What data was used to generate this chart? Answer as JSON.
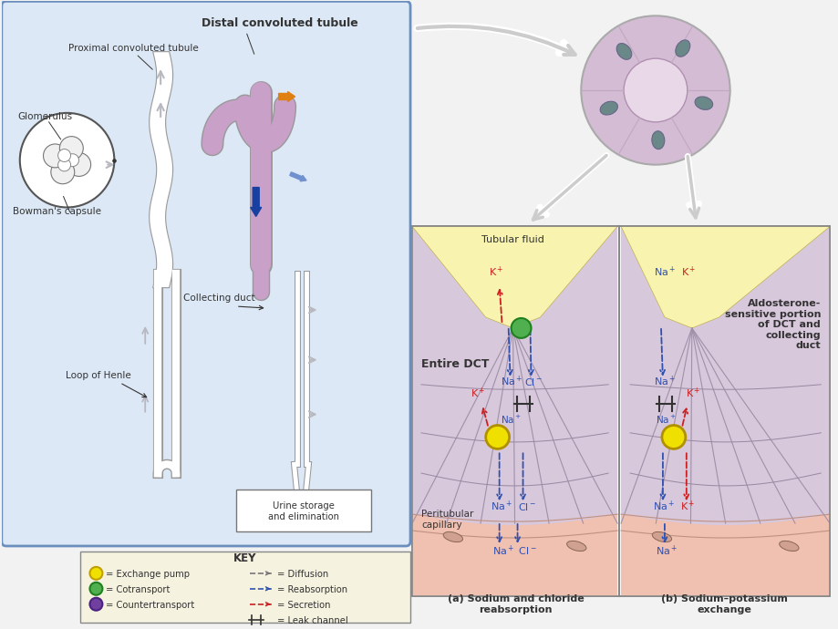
{
  "bg": "#f2f2f2",
  "left_bg": "#dce8f5",
  "left_border": "#6a8fbf",
  "tubule_purple": "#c8a0c8",
  "tubule_outline": "#999999",
  "arrow_gray": "#b8b8c0",
  "arrow_blue_dark": "#3050b0",
  "arrow_orange": "#e08010",
  "arrow_blue_light": "#88aadd",
  "ion_red": "#cc2020",
  "ion_blue": "#3050b0",
  "circle_yellow": "#f0e000",
  "circle_green": "#50b050",
  "circle_purple": "#7040a0",
  "capillary_bg": "#f0c0b0",
  "capillary_vessel": "#e8a898",
  "cell_bg": "#d0b8d0",
  "lumen_bg": "#f8f4b0",
  "key_bg": "#f5f2e0",
  "panel_bg_purple": "#d8c8dc",
  "panel_outline": "#888888",
  "cross_section_bg": "#d4bcd4",
  "cross_section_inner": "#e8d8e8",
  "cross_section_nucleus": "#6a8888",
  "white": "#ffffff",
  "black": "#222222",
  "gray_label": "#333333",
  "proximal_label": "Proximal convoluted tubule",
  "distal_label": "Distal convoluted tubule",
  "glomerulus_label": "Glomerulus",
  "bowman_label": "Bowman's capsule",
  "loop_label": "Loop of Henle",
  "collecting_label": "Collecting duct",
  "urine_label": "Urine storage\nand elimination",
  "tubular_fluid_label": "Tubular fluid",
  "entire_dct_label": "Entire DCT",
  "aldosterone_label": "Aldosterone-\nsensitive portion\nof DCT and\ncollecting\nduct",
  "peritubular_label": "Peritubular\ncapillary",
  "caption_a": "(a) Sodium and chloride\nreabsorption",
  "caption_b": "(b) Sodium–potassium\nexchange",
  "key_title": "KEY",
  "key_left": [
    "Exchange pump",
    "Cotransport",
    "Countertransport"
  ],
  "key_right": [
    "Diffusion",
    "Reabsorption",
    "Secretion",
    "Leak channel"
  ]
}
